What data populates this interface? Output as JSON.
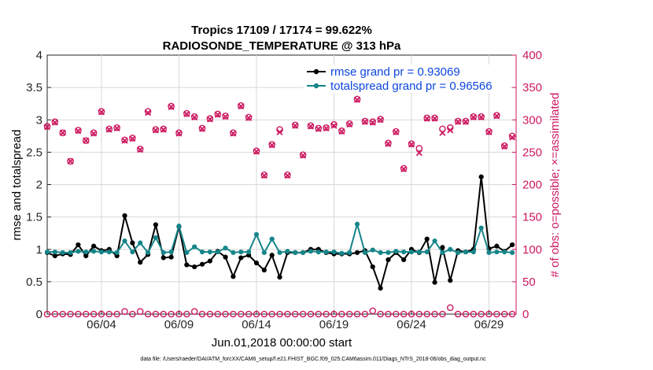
{
  "chart_data": {
    "type": "line",
    "title": "Tropics 17109 / 17174 = 99.622%",
    "subtitle": "RADIOSONDE_TEMPERATURE @ 313 hPa",
    "xlabel": "Jun.01,2018 00:00:00 start",
    "ylabel_left": "rmse and totalspread",
    "ylabel_right": "# of obs: o=possible; ×=assimilated",
    "footer": "data file: /Users/raeder/DAI/ATM_forcXX/CAM6_setup/f.e21.FHIST_BGC.f09_025.CAM6assim.011/Diags_NTrS_2018-06/obs_diag_output.nc",
    "xlim": [
      0.5,
      30.75
    ],
    "ylim_left": [
      0,
      4
    ],
    "ylim_right": [
      0,
      400
    ],
    "x_ticks": [
      4,
      9,
      14,
      19,
      24,
      29
    ],
    "x_tick_labels": [
      "06/04",
      "06/09",
      "06/14",
      "06/19",
      "06/24",
      "06/29"
    ],
    "y_ticks_left": [
      0,
      0.5,
      1,
      1.5,
      2,
      2.5,
      3,
      3.5,
      4
    ],
    "y_tick_labels_left": [
      "0",
      "0.5",
      "1",
      "1.5",
      "2",
      "2.5",
      "3",
      "3.5",
      "4"
    ],
    "y_ticks_right": [
      0,
      50,
      100,
      150,
      200,
      250,
      300,
      350,
      400
    ],
    "y_tick_labels_right": [
      "0",
      "50",
      "100",
      "150",
      "200",
      "250",
      "300",
      "350",
      "400"
    ],
    "x": [
      0.5,
      1,
      1.5,
      2,
      2.5,
      3,
      3.5,
      4,
      4.5,
      5,
      5.5,
      6,
      6.5,
      7,
      7.5,
      8,
      8.5,
      9,
      9.5,
      10,
      10.5,
      11,
      11.5,
      12,
      12.5,
      13,
      13.5,
      14,
      14.5,
      15,
      15.5,
      16,
      16.5,
      17,
      17.5,
      18,
      18.5,
      19,
      19.5,
      20,
      20.5,
      21,
      21.5,
      22,
      22.5,
      23,
      23.5,
      24,
      24.5,
      25,
      25.5,
      26,
      26.5,
      27,
      27.5,
      28,
      28.5,
      29,
      29.5,
      30,
      30.5
    ],
    "series": [
      {
        "name": "rmse grand pr = 0.93069",
        "color": "#000000",
        "axis": "left",
        "values": [
          0.95,
          0.9,
          0.93,
          0.92,
          1.07,
          0.9,
          1.05,
          0.98,
          1.0,
          0.9,
          1.52,
          1.1,
          0.8,
          0.92,
          1.38,
          0.87,
          0.88,
          1.35,
          0.76,
          0.73,
          0.77,
          0.82,
          0.97,
          0.88,
          0.58,
          0.87,
          0.91,
          0.79,
          0.68,
          0.91,
          0.57,
          0.95,
          0.95,
          0.95,
          1.0,
          1.0,
          0.95,
          0.93,
          0.93,
          0.93,
          0.95,
          0.98,
          0.73,
          0.4,
          0.84,
          0.95,
          0.84,
          1.0,
          0.95,
          1.16,
          0.49,
          1.03,
          0.52,
          0.98,
          0.96,
          1.0,
          2.12,
          1.01,
          1.05,
          0.97,
          1.07
        ]
      },
      {
        "name": "totalspread grand pr = 0.96566",
        "color": "#16858a",
        "axis": "left",
        "values": [
          0.96,
          0.96,
          0.95,
          0.95,
          0.97,
          0.96,
          0.97,
          0.96,
          0.96,
          0.95,
          1.13,
          0.96,
          1.1,
          0.95,
          1.18,
          0.95,
          0.96,
          1.36,
          0.95,
          1.04,
          0.96,
          0.96,
          0.96,
          1.02,
          0.95,
          0.96,
          0.96,
          1.23,
          0.95,
          1.16,
          0.95,
          0.97,
          0.95,
          0.95,
          0.97,
          0.96,
          0.96,
          0.96,
          0.94,
          0.95,
          1.39,
          0.95,
          0.99,
          0.95,
          0.95,
          0.97,
          0.96,
          0.96,
          0.96,
          0.96,
          1.13,
          0.95,
          1.0,
          0.95,
          0.96,
          0.96,
          1.33,
          0.95,
          0.96,
          0.96,
          0.95
        ]
      },
      {
        "name": "obs possible",
        "color": "#cc1960",
        "axis": "right",
        "marker": "circle",
        "values": [
          290,
          297,
          280,
          236,
          284,
          268,
          280,
          313,
          286,
          288,
          269,
          272,
          255,
          313,
          285,
          286,
          321,
          280,
          310,
          305,
          287,
          302,
          309,
          306,
          280,
          322,
          304,
          252,
          215,
          262,
          285,
          215,
          292,
          246,
          291,
          287,
          288,
          293,
          283,
          294,
          332,
          298,
          297,
          301,
          264,
          282,
          225,
          263,
          256,
          303,
          303,
          286,
          288,
          298,
          298,
          305,
          305,
          282,
          307,
          260,
          275
        ]
      },
      {
        "name": "obs assimilated",
        "color": "#cc1960",
        "axis": "right",
        "marker": "cross",
        "values": [
          289,
          296,
          280,
          236,
          283,
          268,
          279,
          312,
          285,
          287,
          268,
          271,
          254,
          311,
          284,
          285,
          320,
          279,
          309,
          304,
          286,
          301,
          308,
          305,
          279,
          321,
          303,
          251,
          214,
          261,
          281,
          214,
          291,
          245,
          290,
          286,
          287,
          291,
          282,
          293,
          331,
          297,
          296,
          300,
          263,
          281,
          224,
          262,
          249,
          302,
          302,
          280,
          284,
          297,
          297,
          304,
          304,
          281,
          306,
          259,
          273
        ]
      },
      {
        "name": "rejected",
        "color": "#cc1960",
        "axis": "right",
        "marker": "circle",
        "values": [
          0,
          0,
          0,
          0,
          0,
          0,
          0,
          0,
          0,
          0,
          4,
          0,
          4,
          0,
          0,
          0,
          0,
          0,
          0,
          4,
          0,
          0,
          0,
          0,
          0,
          0,
          0,
          0,
          0,
          0,
          0,
          0,
          0,
          0,
          0,
          0,
          0,
          0,
          0,
          0,
          0,
          0,
          5,
          0,
          0,
          0,
          0,
          0,
          0,
          0,
          0,
          0,
          10,
          0,
          0,
          0,
          0,
          0,
          0,
          0,
          0
        ]
      }
    ],
    "legend": [
      "rmse grand pr = 0.93069",
      "totalspread grand pr = 0.96566"
    ],
    "legend_location": "top-right"
  }
}
